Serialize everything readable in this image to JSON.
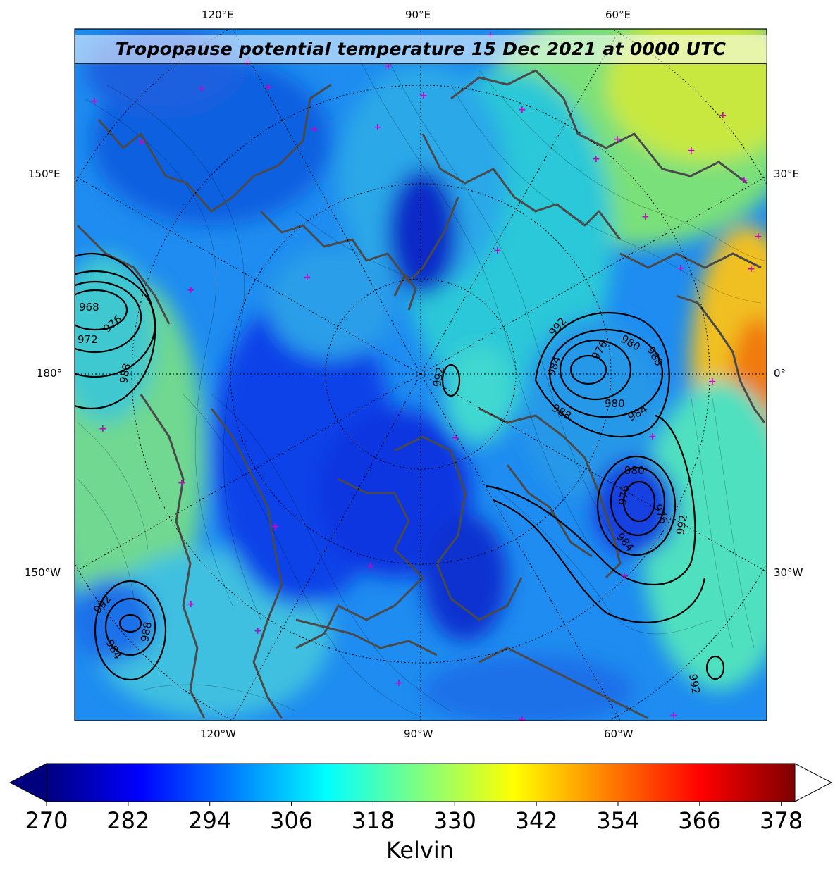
{
  "title": "Tropopause potential temperature 15 Dec 2021 at 0000 UTC",
  "axes": {
    "top": [
      "120°E",
      "90°E",
      "60°E"
    ],
    "bottom": [
      "120°W",
      "90°W",
      "60°W"
    ],
    "left": [
      "150°E",
      "180°",
      "150°W"
    ],
    "right": [
      "30°E",
      "0°",
      "30°W"
    ]
  },
  "colorbar": {
    "ticks": [
      "270",
      "282",
      "294",
      "306",
      "318",
      "330",
      "342",
      "354",
      "366",
      "378"
    ],
    "label": "Kelvin",
    "range": [
      270,
      380
    ],
    "extend": "both",
    "colormap": "jet",
    "stops": [
      "#00007f",
      "#0000ff",
      "#007fff",
      "#00ffff",
      "#7fff7f",
      "#ffff00",
      "#ff7f00",
      "#ff0000",
      "#7f0000"
    ]
  },
  "pressure_contours": {
    "units": "hPa",
    "labels": [
      "968",
      "972",
      "976",
      "988",
      "992",
      "992",
      "984",
      "976",
      "988",
      "980",
      "980",
      "984",
      "988",
      "980",
      "976",
      "976",
      "984",
      "992",
      "992",
      "984",
      "988",
      "992"
    ]
  },
  "colors": {
    "coastline": "#4a4a4a",
    "station_marker": "#cc00cc",
    "contour": "#000000"
  }
}
